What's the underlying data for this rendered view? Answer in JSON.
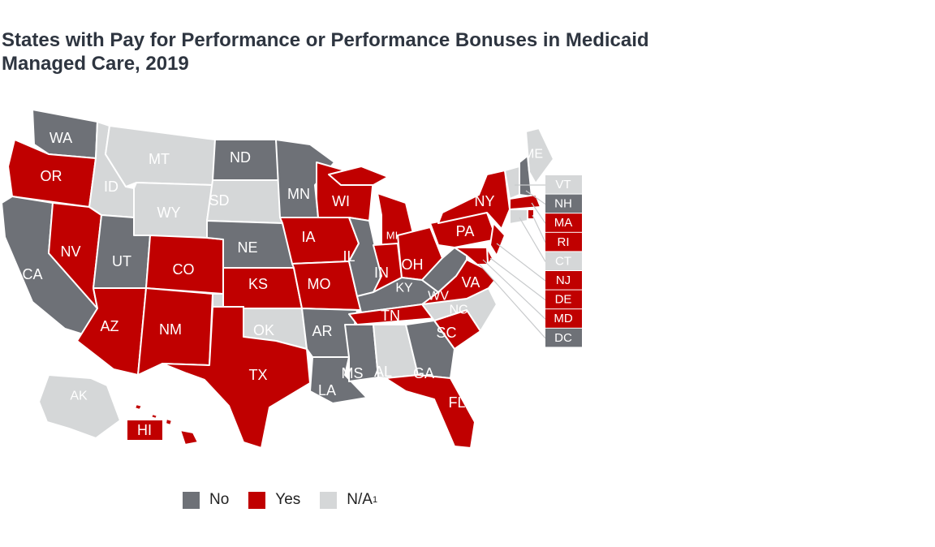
{
  "title": "States with Pay for Performance or Performance Bonuses in Medicaid Managed Care, 2019",
  "colors": {
    "No": "#6e7177",
    "Yes": "#c00000",
    "N/A": "#d5d7d8"
  },
  "legend": [
    {
      "key": "No",
      "label": "No",
      "sup": ""
    },
    {
      "key": "Yes",
      "label": "Yes",
      "sup": ""
    },
    {
      "key": "N/A",
      "label": "N/A",
      "sup": "1"
    }
  ],
  "states": {
    "WA": "No",
    "OR": "Yes",
    "CA": "No",
    "NV": "Yes",
    "ID": "N/A",
    "MT": "N/A",
    "WY": "N/A",
    "UT": "No",
    "AZ": "Yes",
    "CO": "Yes",
    "NM": "Yes",
    "ND": "No",
    "SD": "N/A",
    "NE": "No",
    "KS": "Yes",
    "OK": "N/A",
    "TX": "Yes",
    "MN": "No",
    "IA": "Yes",
    "MO": "Yes",
    "AR": "No",
    "LA": "No",
    "WI": "Yes",
    "IL": "No",
    "MI": "Yes",
    "IN": "Yes",
    "OH": "Yes",
    "KY": "No",
    "TN": "Yes",
    "MS": "No",
    "AL": "N/A",
    "GA": "No",
    "FL": "Yes",
    "SC": "Yes",
    "NC": "N/A",
    "VA": "Yes",
    "WV": "No",
    "PA": "Yes",
    "NY": "Yes",
    "ME": "N/A",
    "AK": "N/A",
    "HI": "Yes",
    "VT": "N/A",
    "NH": "No",
    "MA": "Yes",
    "RI": "Yes",
    "CT": "N/A",
    "NJ": "Yes",
    "DE": "Yes",
    "MD": "Yes",
    "DC": "No"
  },
  "callout_states": [
    "VT",
    "NH",
    "MA",
    "RI",
    "CT",
    "NJ",
    "DE",
    "MD",
    "DC"
  ]
}
